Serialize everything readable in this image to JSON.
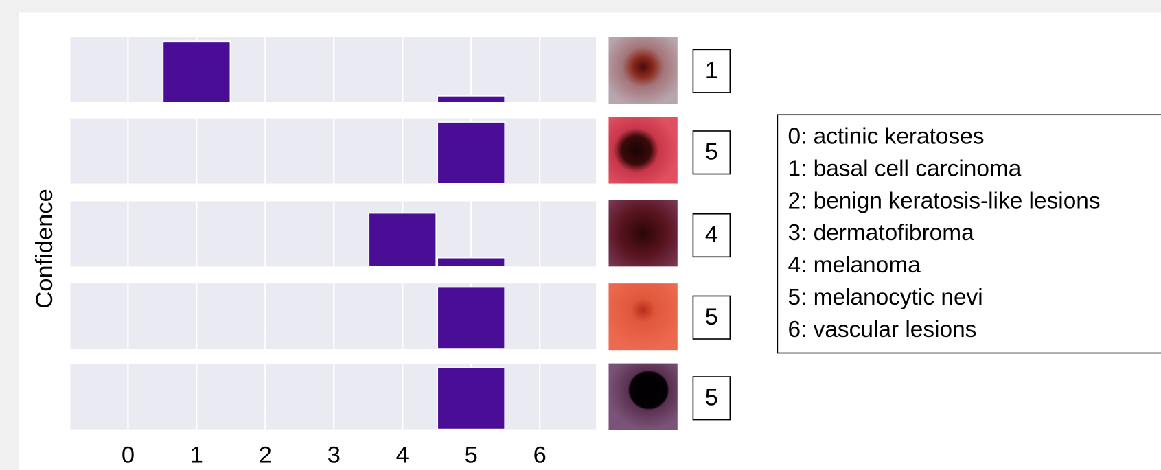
{
  "chart_data": {
    "type": "bar",
    "ylabel": "Confidence",
    "color": "#4a0e96",
    "xlim": [
      -0.84,
      6.82
    ],
    "xticks": [
      0,
      1,
      2,
      3,
      4,
      5,
      6
    ],
    "ylim": [
      0,
      1.05
    ],
    "panels": [
      {
        "values": [
          0,
          0.98,
          0,
          0,
          0,
          0.1,
          0
        ],
        "prediction": "1"
      },
      {
        "values": [
          0,
          0,
          0,
          0,
          0,
          0.99,
          0
        ],
        "prediction": "5"
      },
      {
        "values": [
          0,
          0,
          0,
          0,
          0.86,
          0.14,
          0
        ],
        "prediction": "4"
      },
      {
        "values": [
          0,
          0,
          0,
          0,
          0,
          0.99,
          0
        ],
        "prediction": "5"
      },
      {
        "values": [
          0,
          0,
          0,
          0,
          0,
          0.99,
          0
        ],
        "prediction": "5"
      }
    ],
    "legend": [
      "0: actinic keratoses",
      "1: basal cell carcinoma",
      "2: benign keratosis-like lesions",
      "3: dermatofibroma",
      "4: melanoma",
      "5: melanocytic nevi",
      "6: vascular lesions"
    ]
  }
}
